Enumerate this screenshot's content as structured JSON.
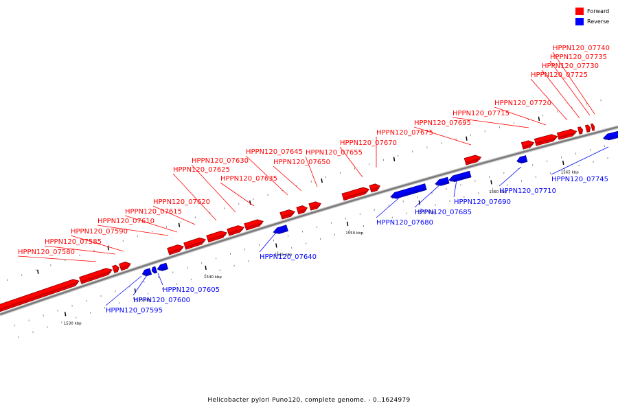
{
  "legend": {
    "forward_label": "Forward",
    "reverse_label": "Reverse",
    "forward_color": "#ff0000",
    "reverse_color": "#0000ff"
  },
  "caption": "Helicobacter pylori Puno120, complete genome. - 0..1624979",
  "kbp_ticks": [
    {
      "label": "1530 kbp"
    },
    {
      "label": "1535 kbp"
    },
    {
      "label": "1540 kbp"
    },
    {
      "label": "1545 kbp"
    },
    {
      "label": "1550 kbp"
    },
    {
      "label": "1555 kbp"
    },
    {
      "label": "1560 kbp"
    },
    {
      "label": "1565 kbp"
    }
  ],
  "forward_genes": [
    "HPPN120_07580",
    "HPPN120_07585",
    "HPPN120_07590",
    "HPPN120_07610",
    "HPPN120_07615",
    "HPPN120_07620",
    "HPPN120_07625",
    "HPPN120_07630",
    "HPPN120_07635",
    "HPPN120_07645",
    "HPPN120_07650",
    "HPPN120_07655",
    "HPPN120_07670",
    "HPPN120_07675",
    "HPPN120_07695",
    "HPPN120_07715",
    "HPPN120_07720",
    "HPPN120_07725",
    "HPPN120_07730",
    "HPPN120_07735",
    "HPPN120_07740"
  ],
  "reverse_genes": [
    "HPPN120_07595",
    "HPPN120_07600",
    "HPPN120_07605",
    "HPPN120_07640",
    "HPPN120_07680",
    "HPPN120_07685",
    "HPPN120_07690",
    "HPPN120_07710",
    "HPPN120_07745"
  ]
}
